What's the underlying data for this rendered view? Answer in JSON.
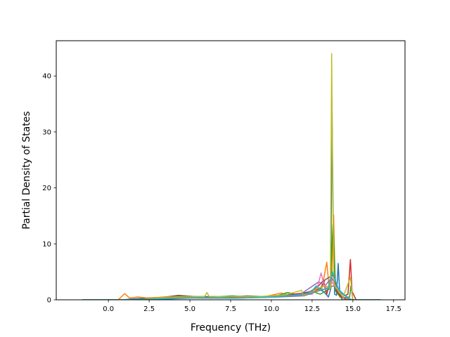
{
  "chart_data": {
    "type": "line",
    "title": "",
    "xlabel": "Frequency (THz)",
    "ylabel": "Partial Density of States",
    "xlim": [
      -3.2,
      18.2
    ],
    "ylim": [
      0,
      46.3
    ],
    "xticks": [
      0.0,
      2.5,
      5.0,
      7.5,
      10.0,
      12.5,
      15.0,
      17.5
    ],
    "xtick_labels": [
      "0.0",
      "2.5",
      "5.0",
      "7.5",
      "10.0",
      "12.5",
      "15.0",
      "17.5"
    ],
    "yticks": [
      0,
      10,
      20,
      30,
      40
    ],
    "ytick_labels": [
      "0",
      "10",
      "20",
      "30",
      "40"
    ],
    "grid": false,
    "legend": "none",
    "series": [
      {
        "color": "#1f77b4",
        "x": [
          -1.6,
          0.8,
          1.8,
          3.0,
          4.5,
          6.0,
          7.5,
          9.0,
          10.5,
          11.5,
          12.4,
          12.8,
          13.2,
          13.5,
          13.65,
          13.72,
          13.8,
          13.88,
          14.0,
          14.1,
          14.2,
          14.35,
          14.8,
          15.3,
          16.7
        ],
        "y": [
          0,
          0,
          0.2,
          0.4,
          0.3,
          0.4,
          0.3,
          0.4,
          0.6,
          0.9,
          1.5,
          2.0,
          1.5,
          0.5,
          2.0,
          35.2,
          12.0,
          1.0,
          0.8,
          6.5,
          1.0,
          0,
          0,
          0,
          0
        ]
      },
      {
        "color": "#ff7f0e",
        "x": [
          -1.6,
          0.6,
          1.0,
          1.3,
          1.8,
          2.5,
          3.8,
          5.0,
          6.5,
          8.0,
          9.5,
          10.6,
          11.2,
          12.0,
          12.7,
          13.1,
          13.4,
          13.55,
          13.7,
          13.82,
          13.92,
          14.2,
          15.0,
          16.7
        ],
        "y": [
          0,
          0,
          1.1,
          0.3,
          0.5,
          0.3,
          0.6,
          0.5,
          0.6,
          0.4,
          0.5,
          1.2,
          0.8,
          1.0,
          1.6,
          2.0,
          6.7,
          2.0,
          3.0,
          15.2,
          2.0,
          0.5,
          0,
          0
        ]
      },
      {
        "color": "#2ca02c",
        "x": [
          -1.6,
          1.5,
          3.0,
          4.3,
          6.0,
          7.6,
          8.8,
          10.3,
          11.0,
          11.8,
          12.5,
          13.0,
          13.6,
          13.78,
          13.95,
          14.3,
          14.8,
          14.88,
          15.0,
          16.7
        ],
        "y": [
          0,
          0,
          0.3,
          0.8,
          0.4,
          0.7,
          0.5,
          0.7,
          1.3,
          0.8,
          1.5,
          1.0,
          2.0,
          13.5,
          1.5,
          0.3,
          0.5,
          2.5,
          0,
          0
        ]
      },
      {
        "color": "#d62728",
        "x": [
          -1.6,
          2.0,
          4.2,
          6.2,
          8.3,
          10.0,
          11.0,
          12.3,
          12.9,
          13.2,
          13.4,
          13.75,
          14.0,
          14.3,
          14.7,
          14.85,
          14.95,
          15.2,
          16.7
        ],
        "y": [
          0,
          0,
          0.7,
          0.5,
          0.6,
          0.6,
          0.9,
          1.3,
          2.5,
          3.5,
          1.0,
          5.0,
          1.5,
          0.5,
          1.0,
          7.2,
          1.5,
          0,
          0
        ]
      },
      {
        "color": "#9467bd",
        "x": [
          -1.6,
          2.2,
          4.0,
          6.8,
          9.0,
          10.5,
          11.8,
          12.9,
          13.3,
          13.7,
          14.1,
          14.9,
          16.7
        ],
        "y": [
          0,
          0,
          0.4,
          0.3,
          0.4,
          0.6,
          1.0,
          3.2,
          2.5,
          4.0,
          1.5,
          0,
          0
        ]
      },
      {
        "color": "#8c564b",
        "x": [
          -1.6,
          2.0,
          4.0,
          5.8,
          7.0,
          8.5,
          10.2,
          11.8,
          12.3,
          13.0,
          13.3,
          13.85,
          14.1,
          14.6,
          16.7
        ],
        "y": [
          0,
          0,
          0.5,
          0.6,
          0.4,
          0.7,
          0.5,
          0.8,
          1.4,
          2.0,
          3.6,
          4.5,
          1.2,
          0,
          0
        ]
      },
      {
        "color": "#e377c2",
        "x": [
          -1.6,
          1.9,
          3.5,
          5.3,
          7.3,
          9.8,
          10.8,
          12.0,
          12.5,
          12.85,
          13.05,
          13.3,
          13.7,
          14.05,
          14.5,
          16.7
        ],
        "y": [
          0,
          0,
          0.3,
          0.4,
          0.3,
          0.5,
          0.6,
          0.9,
          1.0,
          2.5,
          4.8,
          1.8,
          3.2,
          2.0,
          0,
          0
        ]
      },
      {
        "color": "#7f7f7f",
        "x": [
          -1.6,
          2.5,
          5.0,
          8.0,
          10.5,
          12.0,
          12.8,
          13.4,
          13.8,
          14.2,
          14.9,
          16.7
        ],
        "y": [
          0,
          0,
          0.3,
          0.3,
          0.5,
          0.7,
          1.5,
          2.0,
          2.5,
          1.5,
          0,
          0
        ]
      },
      {
        "color": "#bcbd22",
        "x": [
          -1.6,
          2.0,
          3.6,
          5.9,
          6.05,
          6.2,
          7.7,
          9.4,
          10.9,
          11.85,
          11.95,
          12.3,
          12.8,
          13.3,
          13.62,
          13.7,
          13.76,
          13.84,
          14.0,
          14.4,
          14.85,
          15.0,
          16.7
        ],
        "y": [
          0,
          0,
          0.5,
          0.6,
          1.3,
          0.5,
          0.6,
          0.6,
          0.9,
          1.7,
          0.8,
          1.2,
          2.0,
          2.5,
          2.0,
          44.0,
          20.0,
          3.0,
          2.0,
          0.5,
          4.0,
          0,
          0
        ]
      },
      {
        "color": "#17becf",
        "x": [
          -1.6,
          2.0,
          4.0,
          6.0,
          8.0,
          10.0,
          11.5,
          12.4,
          12.75,
          13.0,
          13.5,
          13.75,
          13.9,
          14.15,
          14.8,
          16.7
        ],
        "y": [
          0,
          0,
          0.3,
          0.4,
          0.3,
          0.5,
          0.8,
          1.2,
          2.5,
          1.8,
          2.0,
          5.0,
          3.5,
          1.8,
          0,
          0
        ]
      }
    ]
  }
}
